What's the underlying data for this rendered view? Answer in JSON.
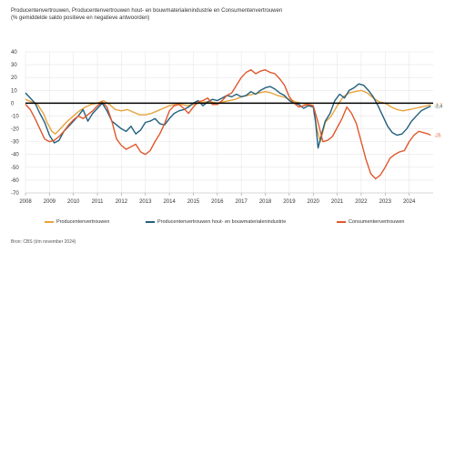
{
  "header": {
    "title": "Producentenvertrouwen, Producentenvertrouwen hout- en bouwmaterialenindustrie en Consumentenvertrouwen",
    "subtitle": "(% gemiddelde saldo positieve en negatieve antwoorden)"
  },
  "source": "Bron: CBS (t/m november 2024)",
  "colors": {
    "producentenvertrouwen": "#e8a33c",
    "hout_bouw": "#23607e",
    "consumentenvertrouwen": "#e0582e",
    "zero_line": "#000000",
    "grid": "#e6e6e6"
  },
  "chart_data": {
    "type": "line",
    "title": "Producentenvertrouwen, Producentenvertrouwen hout- en bouwmaterialenindustrie en Consumentenvertrouwen",
    "subtitle": "(% gemiddelde saldo positieve en negatieve antwoorden)",
    "xlabel": "",
    "ylabel": "",
    "xlim": [
      2008,
      2025
    ],
    "ylim": [
      -70,
      40
    ],
    "x_ticks": [
      "2008",
      "2009",
      "2010",
      "2011",
      "2012",
      "2013",
      "2014",
      "2015",
      "2016",
      "2017",
      "2018",
      "2019",
      "2020",
      "2021",
      "2022",
      "2023",
      "2024"
    ],
    "y_ticks": [
      "40",
      "30",
      "20",
      "10",
      "0",
      "-10",
      "-20",
      "-30",
      "-40",
      "-50",
      "-60",
      "-70"
    ],
    "grid": true,
    "legend_position": "bottom",
    "series": [
      {
        "key": "producentenvertrouwen",
        "name": "Producentenvertrouwen",
        "end_label": "-1,3",
        "points": [
          [
            2008.0,
            3
          ],
          [
            2008.25,
            1
          ],
          [
            2008.5,
            -1
          ],
          [
            2008.75,
            -8
          ],
          [
            2008.9,
            -15
          ],
          [
            2009.1,
            -22
          ],
          [
            2009.25,
            -24
          ],
          [
            2009.5,
            -19
          ],
          [
            2009.75,
            -14
          ],
          [
            2010.0,
            -10
          ],
          [
            2010.25,
            -6
          ],
          [
            2010.5,
            -3
          ],
          [
            2010.75,
            -1
          ],
          [
            2011.0,
            0
          ],
          [
            2011.25,
            2
          ],
          [
            2011.5,
            -1
          ],
          [
            2011.75,
            -5
          ],
          [
            2012.0,
            -6
          ],
          [
            2012.25,
            -5
          ],
          [
            2012.5,
            -7
          ],
          [
            2012.75,
            -9
          ],
          [
            2013.0,
            -9
          ],
          [
            2013.25,
            -8
          ],
          [
            2013.5,
            -6
          ],
          [
            2013.75,
            -4
          ],
          [
            2014.0,
            -2
          ],
          [
            2014.25,
            -1
          ],
          [
            2014.5,
            -1
          ],
          [
            2014.75,
            -2
          ],
          [
            2015.0,
            -1
          ],
          [
            2015.25,
            0
          ],
          [
            2015.5,
            1
          ],
          [
            2015.75,
            1
          ],
          [
            2016.0,
            0
          ],
          [
            2016.25,
            1
          ],
          [
            2016.5,
            2
          ],
          [
            2016.75,
            3
          ],
          [
            2017.0,
            5
          ],
          [
            2017.25,
            6
          ],
          [
            2017.5,
            7
          ],
          [
            2017.75,
            8
          ],
          [
            2018.0,
            9
          ],
          [
            2018.25,
            8
          ],
          [
            2018.5,
            6
          ],
          [
            2018.75,
            5
          ],
          [
            2019.0,
            3
          ],
          [
            2019.25,
            1
          ],
          [
            2019.5,
            0
          ],
          [
            2019.75,
            -1
          ],
          [
            2020.0,
            -2
          ],
          [
            2020.15,
            -20
          ],
          [
            2020.3,
            -30
          ],
          [
            2020.5,
            -15
          ],
          [
            2020.75,
            -10
          ],
          [
            2021.0,
            -2
          ],
          [
            2021.25,
            5
          ],
          [
            2021.5,
            8
          ],
          [
            2021.75,
            9
          ],
          [
            2022.0,
            10
          ],
          [
            2022.25,
            8
          ],
          [
            2022.5,
            4
          ],
          [
            2022.75,
            1
          ],
          [
            2023.0,
            0
          ],
          [
            2023.25,
            -3
          ],
          [
            2023.5,
            -5
          ],
          [
            2023.75,
            -6
          ],
          [
            2024.0,
            -5
          ],
          [
            2024.25,
            -4
          ],
          [
            2024.5,
            -3
          ],
          [
            2024.75,
            -2
          ],
          [
            2024.9,
            -1.3
          ]
        ]
      },
      {
        "key": "hout_bouw",
        "name": "Producentenvertrouwen hout- en bouwmaterialenindustrie",
        "end_label": "-2,4",
        "points": [
          [
            2008.0,
            8
          ],
          [
            2008.2,
            4
          ],
          [
            2008.4,
            0
          ],
          [
            2008.6,
            -8
          ],
          [
            2008.8,
            -15
          ],
          [
            2009.0,
            -25
          ],
          [
            2009.2,
            -31
          ],
          [
            2009.4,
            -29
          ],
          [
            2009.6,
            -22
          ],
          [
            2009.8,
            -18
          ],
          [
            2010.0,
            -14
          ],
          [
            2010.2,
            -10
          ],
          [
            2010.4,
            -5
          ],
          [
            2010.6,
            -14
          ],
          [
            2010.8,
            -8
          ],
          [
            2011.0,
            -4
          ],
          [
            2011.2,
            0
          ],
          [
            2011.4,
            -6
          ],
          [
            2011.6,
            -14
          ],
          [
            2011.8,
            -17
          ],
          [
            2012.0,
            -20
          ],
          [
            2012.2,
            -22
          ],
          [
            2012.4,
            -18
          ],
          [
            2012.6,
            -24
          ],
          [
            2012.8,
            -21
          ],
          [
            2013.0,
            -15
          ],
          [
            2013.2,
            -14
          ],
          [
            2013.4,
            -12
          ],
          [
            2013.6,
            -16
          ],
          [
            2013.8,
            -17
          ],
          [
            2014.0,
            -12
          ],
          [
            2014.2,
            -8
          ],
          [
            2014.4,
            -6
          ],
          [
            2014.6,
            -5
          ],
          [
            2014.8,
            -3
          ],
          [
            2015.0,
            0
          ],
          [
            2015.2,
            2
          ],
          [
            2015.4,
            -2
          ],
          [
            2015.6,
            1
          ],
          [
            2015.8,
            3
          ],
          [
            2016.0,
            2
          ],
          [
            2016.2,
            4
          ],
          [
            2016.4,
            6
          ],
          [
            2016.6,
            5
          ],
          [
            2016.8,
            7
          ],
          [
            2017.0,
            5
          ],
          [
            2017.2,
            6
          ],
          [
            2017.4,
            9
          ],
          [
            2017.6,
            7
          ],
          [
            2017.8,
            10
          ],
          [
            2018.0,
            12
          ],
          [
            2018.2,
            13
          ],
          [
            2018.4,
            11
          ],
          [
            2018.6,
            8
          ],
          [
            2018.8,
            6
          ],
          [
            2019.0,
            2
          ],
          [
            2019.2,
            0
          ],
          [
            2019.4,
            -1
          ],
          [
            2019.6,
            -4
          ],
          [
            2019.8,
            -2
          ],
          [
            2020.0,
            -3
          ],
          [
            2020.1,
            -15
          ],
          [
            2020.2,
            -35
          ],
          [
            2020.35,
            -24
          ],
          [
            2020.5,
            -14
          ],
          [
            2020.7,
            -8
          ],
          [
            2020.9,
            2
          ],
          [
            2021.1,
            7
          ],
          [
            2021.3,
            4
          ],
          [
            2021.5,
            10
          ],
          [
            2021.7,
            12
          ],
          [
            2021.9,
            15
          ],
          [
            2022.1,
            14
          ],
          [
            2022.3,
            10
          ],
          [
            2022.5,
            5
          ],
          [
            2022.7,
            -2
          ],
          [
            2022.9,
            -10
          ],
          [
            2023.1,
            -18
          ],
          [
            2023.3,
            -23
          ],
          [
            2023.5,
            -25
          ],
          [
            2023.7,
            -24
          ],
          [
            2023.9,
            -20
          ],
          [
            2024.1,
            -14
          ],
          [
            2024.3,
            -10
          ],
          [
            2024.5,
            -6
          ],
          [
            2024.7,
            -4
          ],
          [
            2024.9,
            -2.4
          ]
        ]
      },
      {
        "key": "consumentenvertrouwen",
        "name": "Consumentenvertrouwen",
        "end_label": "-25",
        "points": [
          [
            2008.0,
            -1
          ],
          [
            2008.2,
            -5
          ],
          [
            2008.4,
            -12
          ],
          [
            2008.6,
            -20
          ],
          [
            2008.8,
            -28
          ],
          [
            2009.0,
            -30
          ],
          [
            2009.2,
            -29
          ],
          [
            2009.4,
            -26
          ],
          [
            2009.6,
            -22
          ],
          [
            2009.8,
            -17
          ],
          [
            2010.0,
            -13
          ],
          [
            2010.2,
            -10
          ],
          [
            2010.4,
            -12
          ],
          [
            2010.6,
            -9
          ],
          [
            2010.8,
            -6
          ],
          [
            2011.0,
            -2
          ],
          [
            2011.2,
            1
          ],
          [
            2011.4,
            -3
          ],
          [
            2011.6,
            -14
          ],
          [
            2011.8,
            -28
          ],
          [
            2012.0,
            -33
          ],
          [
            2012.2,
            -36
          ],
          [
            2012.4,
            -34
          ],
          [
            2012.6,
            -32
          ],
          [
            2012.8,
            -38
          ],
          [
            2013.0,
            -40
          ],
          [
            2013.2,
            -37
          ],
          [
            2013.4,
            -30
          ],
          [
            2013.6,
            -24
          ],
          [
            2013.8,
            -16
          ],
          [
            2014.0,
            -6
          ],
          [
            2014.2,
            -2
          ],
          [
            2014.4,
            -1
          ],
          [
            2014.6,
            -4
          ],
          [
            2014.8,
            -8
          ],
          [
            2015.0,
            -3
          ],
          [
            2015.2,
            1
          ],
          [
            2015.4,
            2
          ],
          [
            2015.6,
            4
          ],
          [
            2015.8,
            -1
          ],
          [
            2016.0,
            -1
          ],
          [
            2016.2,
            2
          ],
          [
            2016.4,
            6
          ],
          [
            2016.6,
            8
          ],
          [
            2016.8,
            14
          ],
          [
            2017.0,
            20
          ],
          [
            2017.2,
            24
          ],
          [
            2017.4,
            26
          ],
          [
            2017.6,
            23
          ],
          [
            2017.8,
            25
          ],
          [
            2018.0,
            26
          ],
          [
            2018.2,
            24
          ],
          [
            2018.4,
            23
          ],
          [
            2018.6,
            19
          ],
          [
            2018.8,
            14
          ],
          [
            2019.0,
            5
          ],
          [
            2019.2,
            0
          ],
          [
            2019.4,
            -3
          ],
          [
            2019.6,
            -2
          ],
          [
            2019.8,
            -1
          ],
          [
            2020.0,
            -2
          ],
          [
            2020.2,
            -15
          ],
          [
            2020.4,
            -30
          ],
          [
            2020.6,
            -29
          ],
          [
            2020.8,
            -26
          ],
          [
            2021.0,
            -19
          ],
          [
            2021.2,
            -12
          ],
          [
            2021.4,
            -3
          ],
          [
            2021.6,
            -8
          ],
          [
            2021.8,
            -16
          ],
          [
            2022.0,
            -30
          ],
          [
            2022.2,
            -44
          ],
          [
            2022.4,
            -55
          ],
          [
            2022.6,
            -59
          ],
          [
            2022.8,
            -56
          ],
          [
            2023.0,
            -50
          ],
          [
            2023.2,
            -43
          ],
          [
            2023.4,
            -40
          ],
          [
            2023.6,
            -38
          ],
          [
            2023.8,
            -37
          ],
          [
            2024.0,
            -30
          ],
          [
            2024.2,
            -25
          ],
          [
            2024.4,
            -22
          ],
          [
            2024.6,
            -23
          ],
          [
            2024.8,
            -24
          ],
          [
            2024.9,
            -25
          ]
        ]
      }
    ]
  }
}
